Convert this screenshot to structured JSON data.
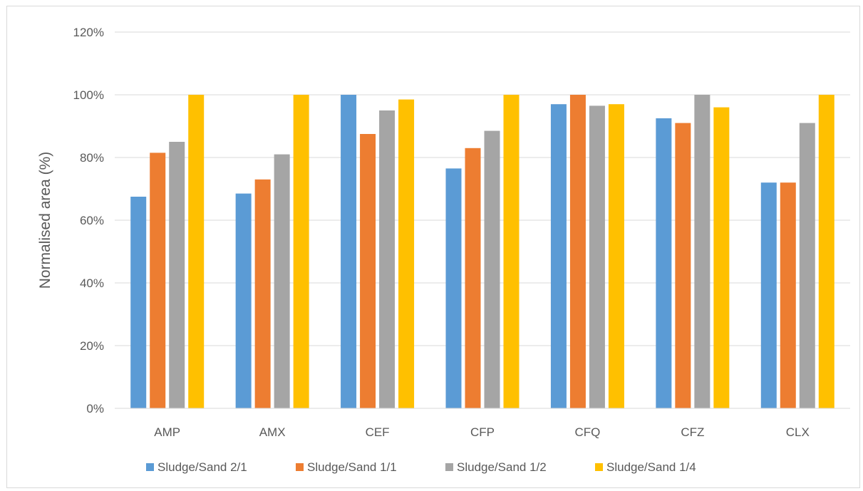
{
  "chart_data": {
    "type": "bar",
    "title": "",
    "xlabel": "",
    "ylabel": "Normalised area (%)",
    "ylim": [
      0,
      120
    ],
    "yticks": [
      "0%",
      "20%",
      "40%",
      "60%",
      "80%",
      "100%",
      "120%"
    ],
    "grid": true,
    "legend_position": "bottom",
    "categories": [
      "AMP",
      "AMX",
      "CEF",
      "CFP",
      "CFQ",
      "CFZ",
      "CLX"
    ],
    "series": [
      {
        "name": "Sludge/Sand 2/1",
        "color": "#5b9bd5",
        "values": [
          67.5,
          68.5,
          100,
          76.5,
          97,
          92.5,
          72
        ]
      },
      {
        "name": "Sludge/Sand 1/1",
        "color": "#ed7d31",
        "values": [
          81.5,
          73,
          87.5,
          83,
          100,
          91,
          72
        ]
      },
      {
        "name": "Sludge/Sand 1/2",
        "color": "#a5a5a5",
        "values": [
          85,
          81,
          95,
          88.5,
          96.5,
          100,
          91
        ]
      },
      {
        "name": "Sludge/Sand 1/4",
        "color": "#ffc000",
        "values": [
          100,
          100,
          98.5,
          100,
          97,
          96,
          100
        ]
      }
    ]
  }
}
